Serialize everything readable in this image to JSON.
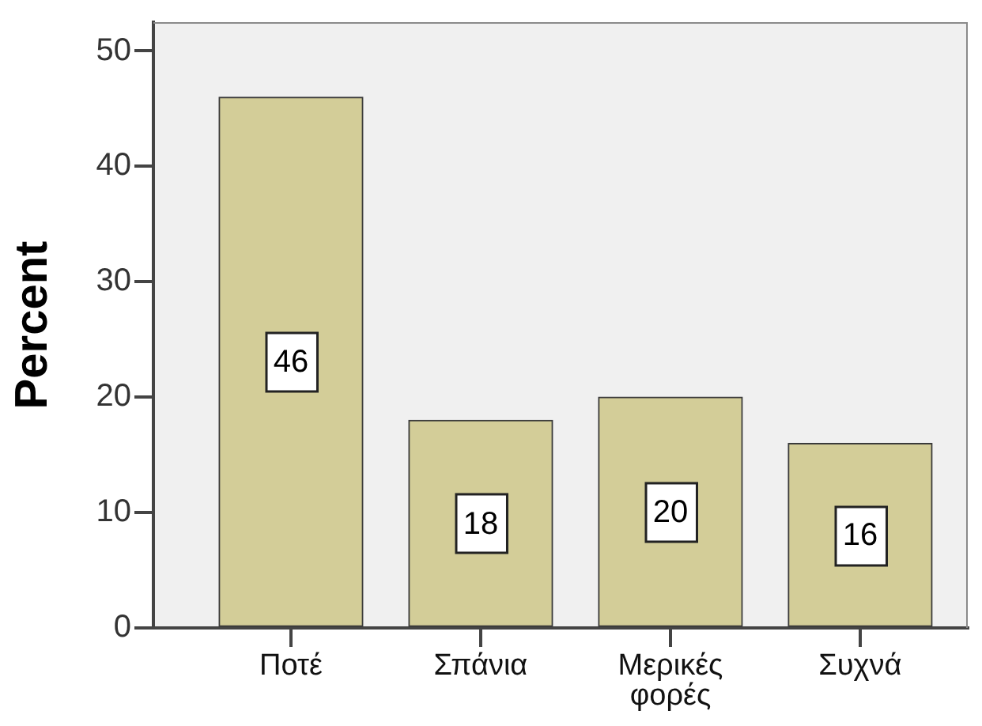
{
  "chart_data": {
    "type": "bar",
    "ylabel": "Percent",
    "categories": [
      "Ποτέ",
      "Σπάνια",
      "Μερικές φορές",
      "Συχνά"
    ],
    "values": [
      46,
      18,
      20,
      16
    ],
    "color": "#d3cd98",
    "ylim": [
      0,
      52.5
    ],
    "yticks": [
      0,
      10,
      20,
      30,
      40,
      50
    ],
    "grid": false,
    "data_labels": true
  }
}
